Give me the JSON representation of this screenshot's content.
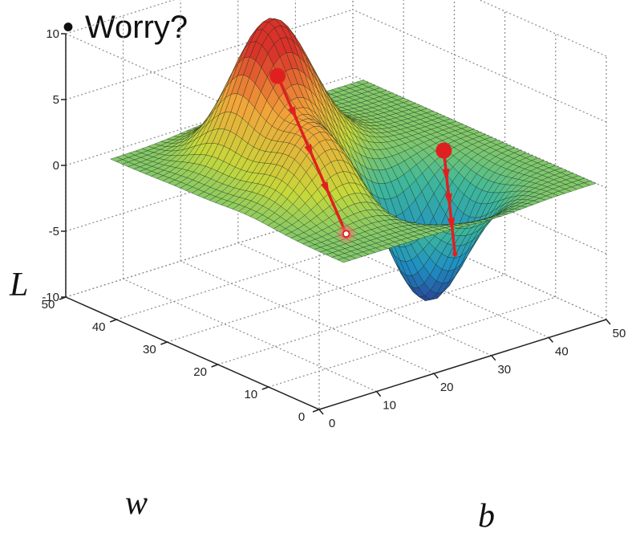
{
  "slide": {
    "bullet_symbol": "•",
    "bullet_text": "Worry?"
  },
  "chart_data": {
    "type": "surface",
    "zlabel": "L",
    "xlabel": "b",
    "ylabel": "w",
    "xlim": [
      0,
      50
    ],
    "ylim": [
      0,
      50
    ],
    "zlim": [
      -10,
      10
    ],
    "x_ticks": [
      "0",
      "10",
      "20",
      "30",
      "40",
      "50"
    ],
    "y_ticks": [
      "0",
      "10",
      "20",
      "30",
      "40",
      "50"
    ],
    "z_ticks": [
      "10",
      "5",
      "0",
      "-5",
      "-10"
    ],
    "grid": true,
    "colormap": [
      "#2b3a8f",
      "#1f8fc4",
      "#3fb89a",
      "#c6d83a",
      "#f2a43a",
      "#d8322a"
    ],
    "surface_peaks": [
      {
        "b": 21,
        "w": 34,
        "L": 9
      },
      {
        "b": 18,
        "w": 21,
        "L": 5
      },
      {
        "b": 33,
        "w": 16,
        "L": -9
      },
      {
        "b": 28,
        "w": 37,
        "L": 4
      }
    ],
    "paths": [
      {
        "start": {
          "b": 21,
          "w": 32,
          "L": 7
        },
        "end": {
          "b": 25,
          "w": 23,
          "L": -4
        },
        "color": "#e02020"
      },
      {
        "start": {
          "b": 42,
          "w": 23,
          "L": 0
        },
        "end": {
          "b": 36,
          "w": 14,
          "L": -5.5
        },
        "color": "#e02020"
      }
    ]
  }
}
